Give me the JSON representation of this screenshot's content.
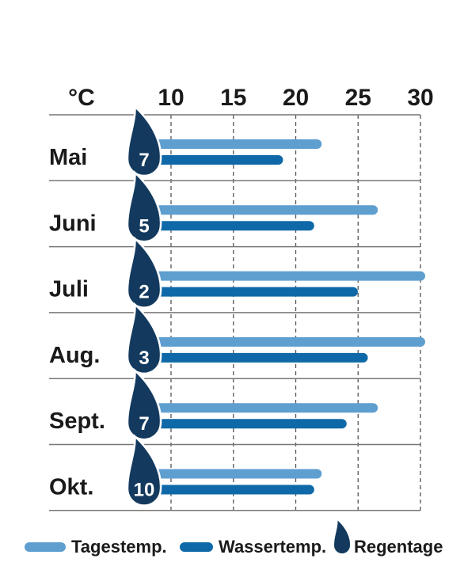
{
  "chart_data": {
    "type": "bar",
    "orientation": "horizontal",
    "unit_label": "°C",
    "x_ticks": [
      10,
      15,
      20,
      25,
      30
    ],
    "xlim": [
      10,
      30
    ],
    "grid": true,
    "legend_position": "bottom",
    "categories": [
      "Mai",
      "Juni",
      "Juli",
      "Aug.",
      "Sept.",
      "Okt."
    ],
    "series": [
      {
        "name": "Tagestemp.",
        "color": "#5f9fd0",
        "values": [
          21.7,
          26.2,
          30,
          30,
          26.2,
          21.7
        ]
      },
      {
        "name": "Wassertemp.",
        "color": "#0f69a8",
        "values": [
          18.6,
          21.1,
          24.6,
          25.4,
          23.7,
          21.1
        ]
      }
    ],
    "rain_days": {
      "name": "Regentage",
      "color": "#133a5e",
      "values": [
        7,
        5,
        2,
        3,
        7,
        10
      ]
    }
  }
}
